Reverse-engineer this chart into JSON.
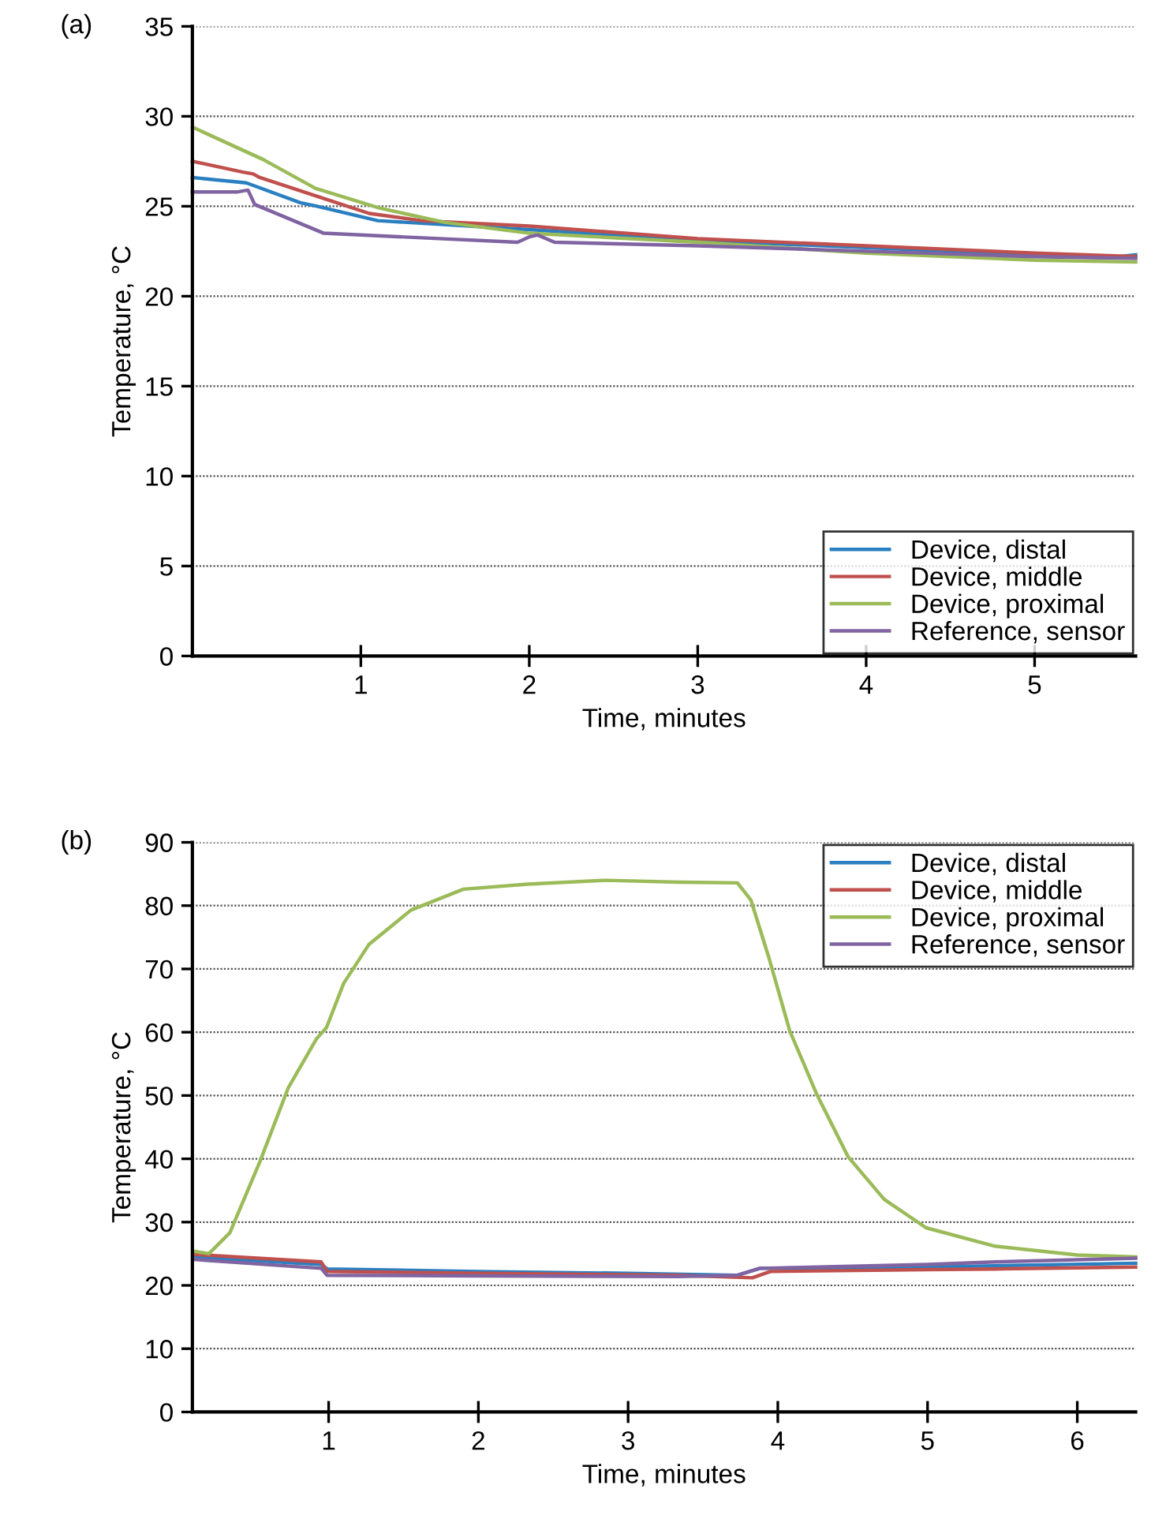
{
  "chart_data": [
    {
      "type": "line",
      "title": "(a)",
      "xlabel": "Time, minutes",
      "ylabel": "Temperature, °C",
      "xlim": [
        0,
        5.6
      ],
      "ylim": [
        0,
        35
      ],
      "xticks": [
        1,
        2,
        3,
        4,
        5
      ],
      "yticks": [
        0,
        5,
        10,
        15,
        20,
        25,
        30,
        35
      ],
      "grid": "y",
      "legend": "bottom right",
      "marker": "none",
      "line_style": "solid",
      "series": [
        {
          "name": "Device, distal",
          "color": "#2a7fc1",
          "x": [
            0,
            0.32,
            0.64,
            0.74,
            1.1,
            2,
            3,
            4,
            5,
            5.5,
            5.6
          ],
          "values": [
            26.6,
            26.3,
            25.2,
            25.0,
            24.2,
            23.7,
            23.1,
            22.7,
            22.3,
            22.2,
            22.3
          ]
        },
        {
          "name": "Device, middle",
          "color": "#c0504d",
          "x": [
            0,
            0.3,
            0.36,
            0.4,
            1.05,
            1.36,
            2,
            3,
            4,
            5,
            5.6
          ],
          "values": [
            27.5,
            26.9,
            26.8,
            26.6,
            24.6,
            24.2,
            23.9,
            23.2,
            22.8,
            22.4,
            22.2
          ]
        },
        {
          "name": "Device, proximal",
          "color": "#9bbb59",
          "x": [
            0,
            0.42,
            0.73,
            1.11,
            1.5,
            2,
            3,
            4,
            5,
            5.6
          ],
          "values": [
            29.4,
            27.6,
            26.0,
            24.9,
            24.1,
            23.5,
            23.0,
            22.4,
            22.0,
            21.9
          ]
        },
        {
          "name": "Reference, sensor",
          "color": "#8064a2",
          "x": [
            0,
            0.27,
            0.33,
            0.37,
            0.78,
            1.93,
            2.0,
            2.05,
            2.15,
            3,
            4,
            5,
            5.6
          ],
          "values": [
            25.8,
            25.8,
            25.9,
            25.1,
            23.5,
            23.0,
            23.3,
            23.4,
            23.0,
            22.8,
            22.5,
            22.2,
            22.1
          ]
        }
      ]
    },
    {
      "type": "line",
      "title": "(b)",
      "xlabel": "Time, minutes",
      "ylabel": "Temperature, °C",
      "xlim": [
        0.09,
        6.39
      ],
      "ylim": [
        0,
        90
      ],
      "xticks": [
        1,
        2,
        3,
        4,
        5,
        6
      ],
      "yticks": [
        0,
        10,
        20,
        30,
        40,
        50,
        60,
        70,
        80,
        90
      ],
      "grid": "y",
      "legend": "top right",
      "marker": "none",
      "line_style": "solid",
      "series": [
        {
          "name": "Device, distal",
          "color": "#2a7fc1",
          "x": [
            0.1,
            0.95,
            0.99,
            2,
            3,
            3.73,
            3.88,
            5,
            5.45,
            6.39
          ],
          "values": [
            24.5,
            23.3,
            22.6,
            22.2,
            21.9,
            21.6,
            22.7,
            22.9,
            23.1,
            23.5
          ]
        },
        {
          "name": "Device, middle",
          "color": "#c0504d",
          "x": [
            0.1,
            0.95,
            0.99,
            2,
            3.34,
            3.83,
            3.95,
            5,
            5.45,
            6.39
          ],
          "values": [
            24.9,
            23.7,
            22.2,
            21.9,
            21.6,
            21.2,
            22.2,
            22.5,
            22.6,
            22.9
          ]
        },
        {
          "name": "Device, proximal",
          "color": "#9bbb59",
          "x": [
            0.1,
            0.2,
            0.34,
            0.54,
            0.73,
            0.92,
            0.985,
            1.1,
            1.27,
            1.55,
            1.9,
            2.33,
            2.85,
            3.34,
            3.73,
            3.82,
            3.94,
            4.08,
            4.26,
            4.47,
            4.71,
            4.99,
            5.45,
            6,
            6.39
          ],
          "values": [
            25.4,
            25.0,
            28.3,
            39.5,
            51.2,
            59.0,
            60.7,
            67.7,
            73.9,
            79.3,
            82.6,
            83.4,
            84.0,
            83.7,
            83.6,
            80.9,
            71.8,
            60.2,
            50.2,
            40.3,
            33.6,
            29.1,
            26.2,
            24.8,
            24.5
          ]
        },
        {
          "name": "Reference, sensor",
          "color": "#8064a2",
          "x": [
            0.1,
            0.95,
            0.99,
            2,
            3.34,
            3.73,
            3.88,
            5,
            5.45,
            6.39
          ],
          "values": [
            24.1,
            22.7,
            21.6,
            21.5,
            21.4,
            21.6,
            22.7,
            23.3,
            23.7,
            24.3
          ]
        }
      ]
    }
  ]
}
